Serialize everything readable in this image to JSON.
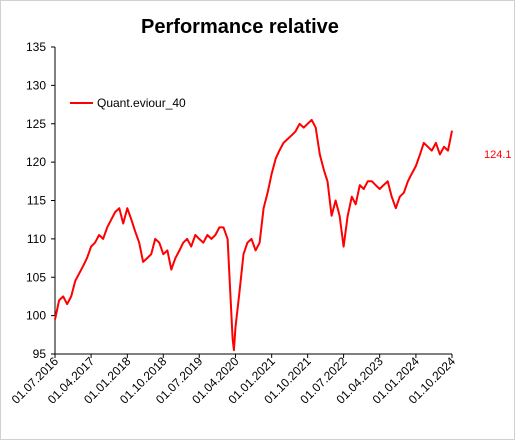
{
  "chart_data": {
    "type": "line",
    "title": "Performance relative",
    "xlabel": "",
    "ylabel": "",
    "ylim": [
      95,
      135
    ],
    "yticks": [
      95,
      100,
      105,
      110,
      115,
      120,
      125,
      130,
      135
    ],
    "xlim": [
      "2016-07-01",
      "2024-10-01"
    ],
    "xtick_labels": [
      "01.07.2016",
      "01.04.2017",
      "01.01.2018",
      "01.10.2018",
      "01.07.2019",
      "01.04.2020",
      "01.01.2021",
      "01.10.2021",
      "01.07.2022",
      "01.04.2023",
      "01.01.2024",
      "01.10.2024"
    ],
    "grid": false,
    "legend_position": "top-left",
    "series": [
      {
        "name": "Quant.eviour_40",
        "color": "#ff0000",
        "x": [
          "2016-07-01",
          "2016-08-01",
          "2016-09-01",
          "2016-10-01",
          "2016-11-01",
          "2016-12-01",
          "2017-01-01",
          "2017-02-01",
          "2017-03-01",
          "2017-04-01",
          "2017-05-01",
          "2017-06-01",
          "2017-07-01",
          "2017-08-01",
          "2017-09-01",
          "2017-10-01",
          "2017-11-01",
          "2017-12-01",
          "2018-01-01",
          "2018-02-01",
          "2018-03-01",
          "2018-04-01",
          "2018-05-01",
          "2018-06-01",
          "2018-07-01",
          "2018-08-01",
          "2018-09-01",
          "2018-10-01",
          "2018-11-01",
          "2018-12-01",
          "2019-01-01",
          "2019-02-01",
          "2019-03-01",
          "2019-04-01",
          "2019-05-01",
          "2019-06-01",
          "2019-07-01",
          "2019-08-01",
          "2019-09-01",
          "2019-10-01",
          "2019-11-01",
          "2019-12-01",
          "2020-01-01",
          "2020-02-01",
          "2020-02-20",
          "2020-03-10",
          "2020-03-20",
          "2020-04-01",
          "2020-05-01",
          "2020-06-01",
          "2020-07-01",
          "2020-08-01",
          "2020-09-01",
          "2020-10-01",
          "2020-11-01",
          "2020-12-01",
          "2021-01-01",
          "2021-02-01",
          "2021-03-01",
          "2021-04-01",
          "2021-05-01",
          "2021-06-01",
          "2021-07-01",
          "2021-08-01",
          "2021-09-01",
          "2021-10-01",
          "2021-11-01",
          "2021-12-01",
          "2022-01-01",
          "2022-02-01",
          "2022-03-01",
          "2022-04-01",
          "2022-05-01",
          "2022-06-01",
          "2022-07-01",
          "2022-08-01",
          "2022-09-01",
          "2022-10-01",
          "2022-11-01",
          "2022-12-01",
          "2023-01-01",
          "2023-02-01",
          "2023-03-01",
          "2023-04-01",
          "2023-05-01",
          "2023-06-01",
          "2023-07-01",
          "2023-08-01",
          "2023-09-01",
          "2023-10-01",
          "2023-11-01",
          "2023-12-01",
          "2024-01-01",
          "2024-02-01",
          "2024-03-01",
          "2024-04-01",
          "2024-05-01",
          "2024-06-01",
          "2024-07-01",
          "2024-08-01",
          "2024-09-01",
          "2024-10-01"
        ],
        "values": [
          99.5,
          102.0,
          102.5,
          101.5,
          102.5,
          104.5,
          105.5,
          106.5,
          107.5,
          109.0,
          109.5,
          110.5,
          110.0,
          111.5,
          112.5,
          113.5,
          114.0,
          112.0,
          114.0,
          112.5,
          111.0,
          109.5,
          107.0,
          107.5,
          108.0,
          110.0,
          109.5,
          108.0,
          108.5,
          106.0,
          107.5,
          108.5,
          109.5,
          110.0,
          109.0,
          110.5,
          110.0,
          109.5,
          110.5,
          110.0,
          110.5,
          111.5,
          111.5,
          110.0,
          103.5,
          97.0,
          95.5,
          98.5,
          103.0,
          108.0,
          109.5,
          110.0,
          108.5,
          109.5,
          114.0,
          116.0,
          118.5,
          120.5,
          121.5,
          122.5,
          123.0,
          123.5,
          124.0,
          125.0,
          124.5,
          125.0,
          125.5,
          124.5,
          121.0,
          119.0,
          117.5,
          113.0,
          115.0,
          113.0,
          109.0,
          113.0,
          115.5,
          114.5,
          117.0,
          116.5,
          117.5,
          117.5,
          117.0,
          116.5,
          117.0,
          117.5,
          115.5,
          114.0,
          115.5,
          116.0,
          117.5,
          118.5,
          119.5,
          121.0,
          122.5,
          122.0,
          121.5,
          122.5,
          121.0,
          122.0,
          121.5,
          124.1
        ]
      }
    ],
    "annotations": [
      {
        "text": "124.1",
        "color": "#ff0000"
      }
    ]
  }
}
